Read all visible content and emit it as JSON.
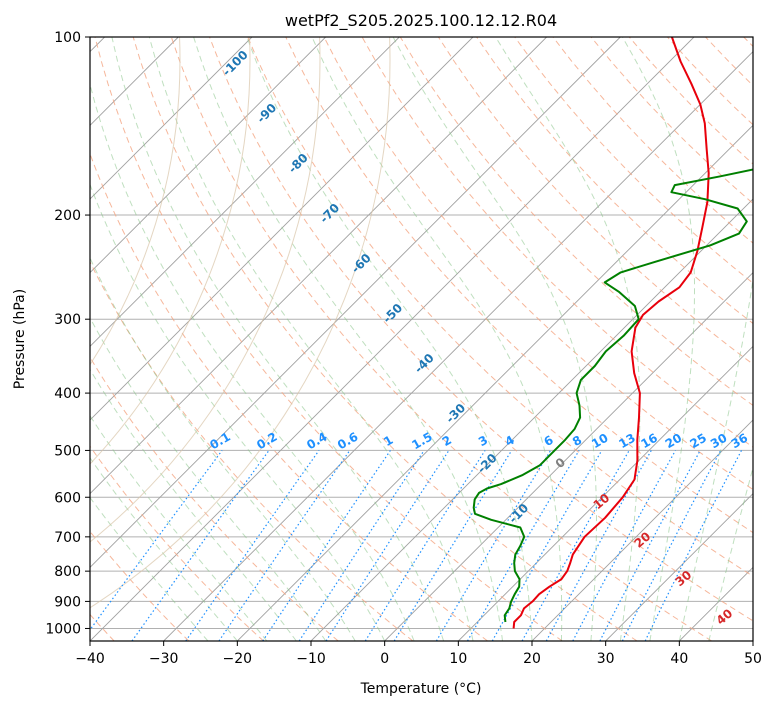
{
  "chart_data": {
    "type": "line",
    "title": "wetPf2_S205.2025.100.12.12.R04",
    "xlabel": "Temperature (°C)",
    "ylabel": "Pressure (hPa)",
    "xlim": [
      -40,
      50
    ],
    "ylim": [
      1050,
      100
    ],
    "y_scale": "log",
    "x_ticks": [
      -40,
      -30,
      -20,
      -10,
      0,
      10,
      20,
      30,
      40,
      50
    ],
    "y_ticks": [
      100,
      200,
      300,
      400,
      500,
      600,
      700,
      800,
      900,
      1000
    ],
    "grid": true,
    "skew": "skew-T log-p diagram with dry adiabats, moist adiabats and mixing ratio lines",
    "series": [
      {
        "color": "#e8000b",
        "points": [
          {
            "p": 1000,
            "t": 15.8
          },
          {
            "p": 975,
            "t": 15.0
          },
          {
            "p": 950,
            "t": 15.0
          },
          {
            "p": 925,
            "t": 14.5
          },
          {
            "p": 900,
            "t": 14.7
          },
          {
            "p": 875,
            "t": 14.6
          },
          {
            "p": 850,
            "t": 15.0
          },
          {
            "p": 825,
            "t": 15.6
          },
          {
            "p": 800,
            "t": 15.3
          },
          {
            "p": 775,
            "t": 14.6
          },
          {
            "p": 750,
            "t": 13.8
          },
          {
            "p": 700,
            "t": 13.0
          },
          {
            "p": 650,
            "t": 13.2
          },
          {
            "p": 600,
            "t": 12.8
          },
          {
            "p": 560,
            "t": 12.0
          },
          {
            "p": 520,
            "t": 9.8
          },
          {
            "p": 480,
            "t": 7.0
          },
          {
            "p": 440,
            "t": 4.2
          },
          {
            "p": 400,
            "t": 1.0
          },
          {
            "p": 370,
            "t": -2.5
          },
          {
            "p": 340,
            "t": -5.8
          },
          {
            "p": 310,
            "t": -8.5
          },
          {
            "p": 295,
            "t": -9.2
          },
          {
            "p": 280,
            "t": -8.9
          },
          {
            "p": 265,
            "t": -8.0
          },
          {
            "p": 250,
            "t": -8.5
          },
          {
            "p": 230,
            "t": -10.5
          },
          {
            "p": 210,
            "t": -13.0
          },
          {
            "p": 190,
            "t": -15.8
          },
          {
            "p": 170,
            "t": -19.5
          },
          {
            "p": 155,
            "t": -23.0
          },
          {
            "p": 140,
            "t": -26.8
          },
          {
            "p": 130,
            "t": -30.0
          },
          {
            "p": 120,
            "t": -34.0
          },
          {
            "p": 110,
            "t": -38.5
          },
          {
            "p": 100,
            "t": -43.0
          }
        ]
      },
      {
        "color": "#008000",
        "points": [
          {
            "p": 975,
            "t": 13.8
          },
          {
            "p": 950,
            "t": 12.8
          },
          {
            "p": 925,
            "t": 12.5
          },
          {
            "p": 900,
            "t": 11.8
          },
          {
            "p": 875,
            "t": 11.3
          },
          {
            "p": 850,
            "t": 10.9
          },
          {
            "p": 825,
            "t": 9.9
          },
          {
            "p": 800,
            "t": 8.2
          },
          {
            "p": 775,
            "t": 7.0
          },
          {
            "p": 750,
            "t": 6.0
          },
          {
            "p": 725,
            "t": 5.5
          },
          {
            "p": 700,
            "t": 4.8
          },
          {
            "p": 675,
            "t": 3.0
          },
          {
            "p": 655,
            "t": -2.0
          },
          {
            "p": 640,
            "t": -5.0
          },
          {
            "p": 625,
            "t": -6.0
          },
          {
            "p": 605,
            "t": -7.0
          },
          {
            "p": 590,
            "t": -7.3
          },
          {
            "p": 580,
            "t": -6.8
          },
          {
            "p": 570,
            "t": -5.5
          },
          {
            "p": 550,
            "t": -3.8
          },
          {
            "p": 530,
            "t": -2.8
          },
          {
            "p": 500,
            "t": -2.8
          },
          {
            "p": 480,
            "t": -2.8
          },
          {
            "p": 460,
            "t": -3.0
          },
          {
            "p": 440,
            "t": -3.8
          },
          {
            "p": 420,
            "t": -5.5
          },
          {
            "p": 400,
            "t": -7.6
          },
          {
            "p": 380,
            "t": -8.8
          },
          {
            "p": 360,
            "t": -8.8
          },
          {
            "p": 340,
            "t": -9.3
          },
          {
            "p": 320,
            "t": -9.0
          },
          {
            "p": 300,
            "t": -9.2
          },
          {
            "p": 285,
            "t": -11.5
          },
          {
            "p": 270,
            "t": -15.5
          },
          {
            "p": 260,
            "t": -18.8
          },
          {
            "p": 250,
            "t": -18.0
          },
          {
            "p": 240,
            "t": -14.8
          },
          {
            "p": 225,
            "t": -9.5
          },
          {
            "p": 215,
            "t": -7.2
          },
          {
            "p": 205,
            "t": -7.8
          },
          {
            "p": 195,
            "t": -10.8
          },
          {
            "p": 188,
            "t": -16.5
          },
          {
            "p": 183,
            "t": -22.0
          },
          {
            "p": 178,
            "t": -22.5
          },
          {
            "p": 172,
            "t": -17.5
          },
          {
            "p": 165,
            "t": -12.0
          },
          {
            "p": 155,
            "t": -9.8
          },
          {
            "p": 145,
            "t": -11.5
          },
          {
            "p": 138,
            "t": -15.0
          },
          {
            "p": 130,
            "t": -16.5
          },
          {
            "p": 120,
            "t": -15.5
          },
          {
            "p": 112,
            "t": -14.0
          },
          {
            "p": 105,
            "t": -14.0
          },
          {
            "p": 100,
            "t": -14.5
          }
        ]
      }
    ],
    "dry_adiabat_labels": [
      "-100",
      "-90",
      "-80",
      "-70",
      "-60",
      "-50",
      "-40",
      "-30",
      "-20",
      "-10"
    ],
    "moist_adiabat_labels": [
      "0",
      "10",
      "20",
      "30",
      "40"
    ],
    "mixing_ratio_labels": [
      "0.1",
      "0.2",
      "0.4",
      "0.6",
      "1",
      "1.5",
      "2",
      "3",
      "4",
      "6",
      "8",
      "10",
      "13",
      "16",
      "20",
      "25",
      "30",
      "36"
    ],
    "colors": {
      "temperature": "#e8000b",
      "dewpoint": "#008000",
      "dry_adiabat_label": "#1f77b4",
      "mixing_ratio": "#1e90ff",
      "moist_adiabat_label": "#d62728",
      "moist_zero_label": "#808080",
      "isotherm": "#a0a0a0"
    }
  }
}
